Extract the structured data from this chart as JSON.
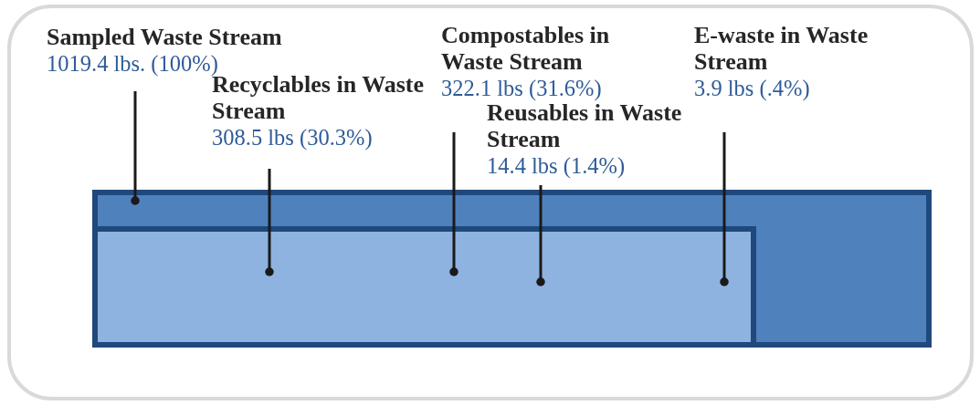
{
  "chart_data": {
    "type": "other",
    "categories": [
      "Sampled Waste Stream",
      "Recyclables in Waste Stream",
      "Compostables in Waste Stream",
      "Reusables in Waste Stream",
      "E-waste in Waste Stream"
    ],
    "values": [
      1019.4,
      308.5,
      322.1,
      14.4,
      3.9
    ],
    "value_labels": [
      "1019.4 lbs. (100%)",
      "308.5 lbs (30.3%)",
      "322.1 lbs (31.6%)",
      "14.4 lbs (1.4%)",
      "3.9 lbs (.4%)"
    ],
    "colors": [
      "#4f81bd",
      "#8eb3e0",
      "#8eb3e0",
      "#8eb3e0",
      "#8eb3e0"
    ]
  }
}
